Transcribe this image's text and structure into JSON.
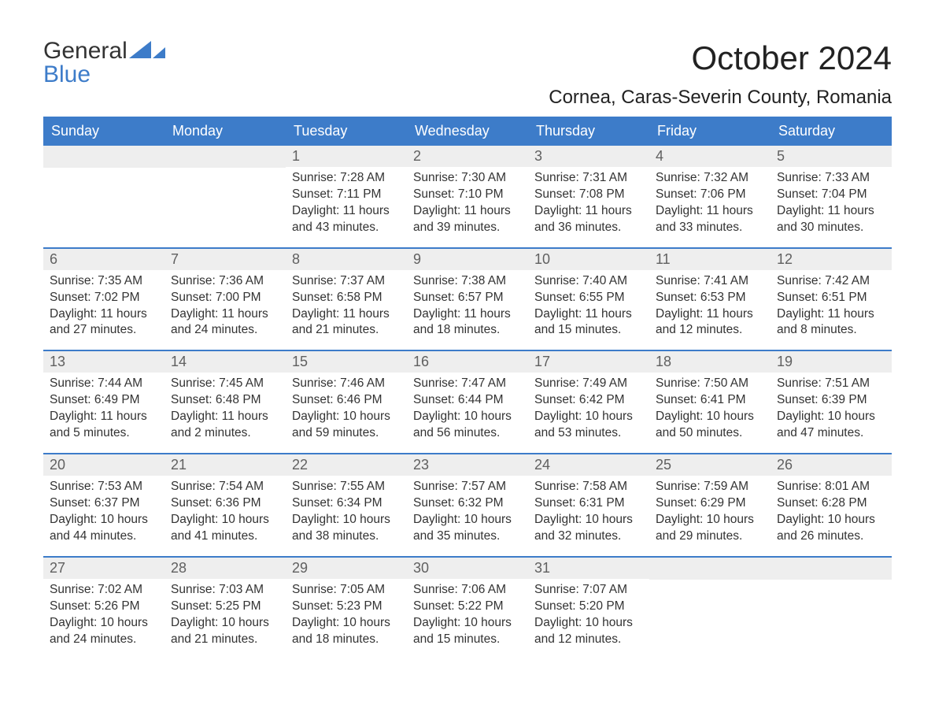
{
  "brand": {
    "part1": "General",
    "part2": "Blue"
  },
  "title": "October 2024",
  "location": "Cornea, Caras-Severin County, Romania",
  "colors": {
    "accent": "#3d7cc9",
    "row_bg": "#eeeeee",
    "text": "#333333",
    "bg": "#ffffff"
  },
  "dow": [
    "Sunday",
    "Monday",
    "Tuesday",
    "Wednesday",
    "Thursday",
    "Friday",
    "Saturday"
  ],
  "weeks": [
    [
      {
        "day": "",
        "lines": [
          "",
          "",
          "",
          ""
        ]
      },
      {
        "day": "",
        "lines": [
          "",
          "",
          "",
          ""
        ]
      },
      {
        "day": "1",
        "lines": [
          "Sunrise: 7:28 AM",
          "Sunset: 7:11 PM",
          "Daylight: 11 hours",
          "and 43 minutes."
        ]
      },
      {
        "day": "2",
        "lines": [
          "Sunrise: 7:30 AM",
          "Sunset: 7:10 PM",
          "Daylight: 11 hours",
          "and 39 minutes."
        ]
      },
      {
        "day": "3",
        "lines": [
          "Sunrise: 7:31 AM",
          "Sunset: 7:08 PM",
          "Daylight: 11 hours",
          "and 36 minutes."
        ]
      },
      {
        "day": "4",
        "lines": [
          "Sunrise: 7:32 AM",
          "Sunset: 7:06 PM",
          "Daylight: 11 hours",
          "and 33 minutes."
        ]
      },
      {
        "day": "5",
        "lines": [
          "Sunrise: 7:33 AM",
          "Sunset: 7:04 PM",
          "Daylight: 11 hours",
          "and 30 minutes."
        ]
      }
    ],
    [
      {
        "day": "6",
        "lines": [
          "Sunrise: 7:35 AM",
          "Sunset: 7:02 PM",
          "Daylight: 11 hours",
          "and 27 minutes."
        ]
      },
      {
        "day": "7",
        "lines": [
          "Sunrise: 7:36 AM",
          "Sunset: 7:00 PM",
          "Daylight: 11 hours",
          "and 24 minutes."
        ]
      },
      {
        "day": "8",
        "lines": [
          "Sunrise: 7:37 AM",
          "Sunset: 6:58 PM",
          "Daylight: 11 hours",
          "and 21 minutes."
        ]
      },
      {
        "day": "9",
        "lines": [
          "Sunrise: 7:38 AM",
          "Sunset: 6:57 PM",
          "Daylight: 11 hours",
          "and 18 minutes."
        ]
      },
      {
        "day": "10",
        "lines": [
          "Sunrise: 7:40 AM",
          "Sunset: 6:55 PM",
          "Daylight: 11 hours",
          "and 15 minutes."
        ]
      },
      {
        "day": "11",
        "lines": [
          "Sunrise: 7:41 AM",
          "Sunset: 6:53 PM",
          "Daylight: 11 hours",
          "and 12 minutes."
        ]
      },
      {
        "day": "12",
        "lines": [
          "Sunrise: 7:42 AM",
          "Sunset: 6:51 PM",
          "Daylight: 11 hours",
          "and 8 minutes."
        ]
      }
    ],
    [
      {
        "day": "13",
        "lines": [
          "Sunrise: 7:44 AM",
          "Sunset: 6:49 PM",
          "Daylight: 11 hours",
          "and 5 minutes."
        ]
      },
      {
        "day": "14",
        "lines": [
          "Sunrise: 7:45 AM",
          "Sunset: 6:48 PM",
          "Daylight: 11 hours",
          "and 2 minutes."
        ]
      },
      {
        "day": "15",
        "lines": [
          "Sunrise: 7:46 AM",
          "Sunset: 6:46 PM",
          "Daylight: 10 hours",
          "and 59 minutes."
        ]
      },
      {
        "day": "16",
        "lines": [
          "Sunrise: 7:47 AM",
          "Sunset: 6:44 PM",
          "Daylight: 10 hours",
          "and 56 minutes."
        ]
      },
      {
        "day": "17",
        "lines": [
          "Sunrise: 7:49 AM",
          "Sunset: 6:42 PM",
          "Daylight: 10 hours",
          "and 53 minutes."
        ]
      },
      {
        "day": "18",
        "lines": [
          "Sunrise: 7:50 AM",
          "Sunset: 6:41 PM",
          "Daylight: 10 hours",
          "and 50 minutes."
        ]
      },
      {
        "day": "19",
        "lines": [
          "Sunrise: 7:51 AM",
          "Sunset: 6:39 PM",
          "Daylight: 10 hours",
          "and 47 minutes."
        ]
      }
    ],
    [
      {
        "day": "20",
        "lines": [
          "Sunrise: 7:53 AM",
          "Sunset: 6:37 PM",
          "Daylight: 10 hours",
          "and 44 minutes."
        ]
      },
      {
        "day": "21",
        "lines": [
          "Sunrise: 7:54 AM",
          "Sunset: 6:36 PM",
          "Daylight: 10 hours",
          "and 41 minutes."
        ]
      },
      {
        "day": "22",
        "lines": [
          "Sunrise: 7:55 AM",
          "Sunset: 6:34 PM",
          "Daylight: 10 hours",
          "and 38 minutes."
        ]
      },
      {
        "day": "23",
        "lines": [
          "Sunrise: 7:57 AM",
          "Sunset: 6:32 PM",
          "Daylight: 10 hours",
          "and 35 minutes."
        ]
      },
      {
        "day": "24",
        "lines": [
          "Sunrise: 7:58 AM",
          "Sunset: 6:31 PM",
          "Daylight: 10 hours",
          "and 32 minutes."
        ]
      },
      {
        "day": "25",
        "lines": [
          "Sunrise: 7:59 AM",
          "Sunset: 6:29 PM",
          "Daylight: 10 hours",
          "and 29 minutes."
        ]
      },
      {
        "day": "26",
        "lines": [
          "Sunrise: 8:01 AM",
          "Sunset: 6:28 PM",
          "Daylight: 10 hours",
          "and 26 minutes."
        ]
      }
    ],
    [
      {
        "day": "27",
        "lines": [
          "Sunrise: 7:02 AM",
          "Sunset: 5:26 PM",
          "Daylight: 10 hours",
          "and 24 minutes."
        ]
      },
      {
        "day": "28",
        "lines": [
          "Sunrise: 7:03 AM",
          "Sunset: 5:25 PM",
          "Daylight: 10 hours",
          "and 21 minutes."
        ]
      },
      {
        "day": "29",
        "lines": [
          "Sunrise: 7:05 AM",
          "Sunset: 5:23 PM",
          "Daylight: 10 hours",
          "and 18 minutes."
        ]
      },
      {
        "day": "30",
        "lines": [
          "Sunrise: 7:06 AM",
          "Sunset: 5:22 PM",
          "Daylight: 10 hours",
          "and 15 minutes."
        ]
      },
      {
        "day": "31",
        "lines": [
          "Sunrise: 7:07 AM",
          "Sunset: 5:20 PM",
          "Daylight: 10 hours",
          "and 12 minutes."
        ]
      },
      {
        "day": "",
        "lines": [
          "",
          "",
          "",
          ""
        ]
      },
      {
        "day": "",
        "lines": [
          "",
          "",
          "",
          ""
        ]
      }
    ]
  ]
}
